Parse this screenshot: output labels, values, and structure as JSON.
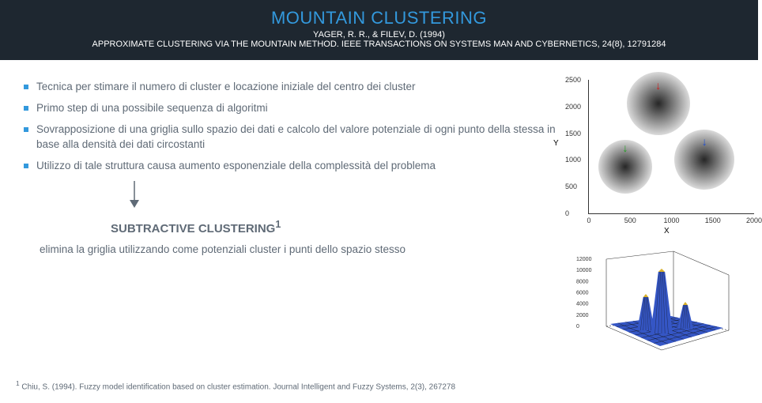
{
  "header": {
    "title": "MOUNTAIN CLUSTERING",
    "line1": "YAGER, R. R., & FILEV, D. (1994)",
    "line2": "APPROXIMATE CLUSTERING VIA THE MOUNTAIN METHOD. IEEE TRANSACTIONS ON SYSTEMS MAN AND CYBERNETICS, 24(8), 12791284"
  },
  "bullets": [
    "Tecnica per stimare il numero di cluster e locazione iniziale del centro dei cluster",
    "Primo step di una possibile sequenza di algoritmi",
    "Sovrapposizione di una griglia sullo spazio dei dati e calcolo del valore potenziale di ogni punto della stessa in base alla densità dei dati circostanti",
    "Utilizzo di tale struttura causa aumento esponenziale della complessità del problema"
  ],
  "sub": {
    "heading": "SUBTRACTIVE CLUSTERING",
    "sup": "1",
    "text": "elimina la griglia utilizzando come potenziali cluster i punti dello spazio stesso"
  },
  "footnote": {
    "sup": "1",
    "text": " Chiu, S. (1994). Fuzzy model identification based on cluster estimation. Journal Intelligent and Fuzzy Systems, 2(3), 267278"
  },
  "top_chart": {
    "y_ticks": [
      "0",
      "500",
      "1000",
      "1500",
      "2000",
      "2500"
    ],
    "x_ticks": [
      "0",
      "500",
      "1000",
      "1500",
      "2000"
    ],
    "y_label": "Y",
    "x_label": "X",
    "clusters": [
      {
        "cx_pct": 42,
        "cy_pct": 18,
        "r": 40,
        "arrow_color": "#d02020"
      },
      {
        "cx_pct": 22,
        "cy_pct": 65,
        "r": 34,
        "arrow_color": "#20a020"
      },
      {
        "cx_pct": 70,
        "cy_pct": 60,
        "r": 38,
        "arrow_color": "#2050d0"
      }
    ]
  },
  "bottom_chart": {
    "z_ticks": [
      "0",
      "2000",
      "4000",
      "6000",
      "8000",
      "10000",
      "12000"
    ],
    "surface_color": "#3556c5",
    "peak_color": "#d8b02a",
    "grid_color": "#111"
  },
  "colors": {
    "header_bg": "#1e2730",
    "accent": "#3399dd",
    "body_text": "#5f6a76"
  }
}
